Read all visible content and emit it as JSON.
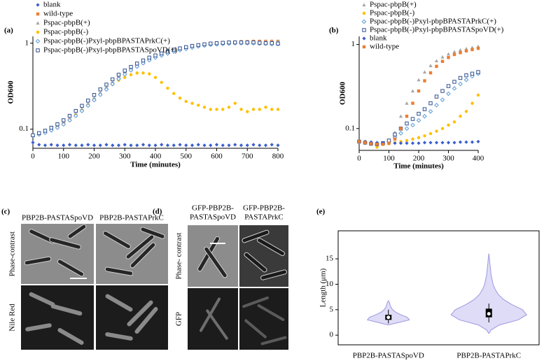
{
  "chart_data": [
    {
      "type": "scatter",
      "label": "(a)",
      "x_label": "Time (minutes)",
      "y_label": "OD600",
      "log_y": true,
      "legend": "upper left",
      "xlim": [
        0,
        800
      ],
      "ylim": [
        0.06,
        1.2
      ],
      "xticks": [
        0,
        100,
        200,
        300,
        400,
        500,
        600,
        700,
        800
      ],
      "yticks": [
        0.1,
        1
      ],
      "x": [
        0,
        20,
        40,
        60,
        80,
        100,
        120,
        140,
        160,
        180,
        200,
        220,
        240,
        260,
        280,
        300,
        320,
        340,
        360,
        380,
        400,
        420,
        440,
        460,
        480,
        500,
        520,
        540,
        560,
        580,
        600,
        620,
        640,
        660,
        680,
        700,
        720,
        740,
        760,
        780,
        800
      ],
      "series": [
        {
          "name": "blank",
          "color": "#3a5fcd",
          "marker": "diamond",
          "values": [
            0.07,
            0.066,
            0.065,
            0.066,
            0.065,
            0.065,
            0.066,
            0.065,
            0.065,
            0.066,
            0.065,
            0.065,
            0.066,
            0.065,
            0.065,
            0.066,
            0.065,
            0.065,
            0.066,
            0.065,
            0.065,
            0.066,
            0.065,
            0.065,
            0.066,
            0.065,
            0.065,
            0.066,
            0.065,
            0.065,
            0.066,
            0.065,
            0.065,
            0.066,
            0.065,
            0.065,
            0.066,
            0.065,
            0.065,
            0.066,
            0.065
          ]
        },
        {
          "name": "wild-type",
          "color": "#ed7d31",
          "marker": "square",
          "values": [
            0.085,
            0.088,
            0.092,
            0.098,
            0.105,
            0.115,
            0.128,
            0.145,
            0.165,
            0.19,
            0.22,
            0.255,
            0.295,
            0.34,
            0.39,
            0.44,
            0.49,
            0.54,
            0.59,
            0.64,
            0.69,
            0.73,
            0.77,
            0.81,
            0.85,
            0.88,
            0.91,
            0.94,
            0.96,
            0.98,
            1.0,
            1.01,
            1.02,
            1.03,
            1.04,
            1.04,
            1.05,
            1.05,
            1.05,
            1.05,
            1.05
          ]
        },
        {
          "name": "Pspac-pbpB(+)",
          "color": "#a6a6a6",
          "marker": "triangle",
          "values": [
            0.086,
            0.089,
            0.093,
            0.099,
            0.107,
            0.118,
            0.132,
            0.15,
            0.172,
            0.198,
            0.23,
            0.265,
            0.305,
            0.35,
            0.4,
            0.45,
            0.5,
            0.55,
            0.6,
            0.65,
            0.7,
            0.74,
            0.78,
            0.82,
            0.86,
            0.89,
            0.92,
            0.95,
            0.97,
            0.99,
            1.01,
            1.02,
            1.03,
            1.04,
            1.05,
            1.05,
            1.06,
            1.06,
            1.06,
            1.06,
            1.06
          ]
        },
        {
          "name": "Pspac-pbpB(-)",
          "color": "#ffc000",
          "marker": "circle",
          "values": [
            0.085,
            0.088,
            0.092,
            0.098,
            0.105,
            0.115,
            0.128,
            0.145,
            0.165,
            0.19,
            0.22,
            0.25,
            0.29,
            0.33,
            0.37,
            0.4,
            0.43,
            0.45,
            0.45,
            0.44,
            0.4,
            0.35,
            0.3,
            0.26,
            0.23,
            0.21,
            0.2,
            0.19,
            0.18,
            0.17,
            0.17,
            0.17,
            0.18,
            0.2,
            0.17,
            0.16,
            0.17,
            0.17,
            0.18,
            0.17,
            0.17
          ]
        },
        {
          "name": "Pspac-pbpB(-)Pxyl-pbpBPASTAPrkC(+)",
          "color": "#5b9bd5",
          "marker": "open-diamond",
          "values": [
            0.084,
            0.087,
            0.091,
            0.097,
            0.104,
            0.114,
            0.127,
            0.143,
            0.163,
            0.188,
            0.218,
            0.252,
            0.29,
            0.335,
            0.385,
            0.435,
            0.485,
            0.535,
            0.585,
            0.635,
            0.68,
            0.72,
            0.76,
            0.8,
            0.83,
            0.86,
            0.89,
            0.92,
            0.94,
            0.96,
            0.97,
            0.98,
            0.99,
            1.0,
            1.0,
            1.0,
            1.0,
            0.99,
            0.99,
            0.98,
            0.98
          ]
        },
        {
          "name": "Pspac-pbpB(-)Pxyl-pbpBPASTASpoVD(+)",
          "color": "#2f4f8f",
          "marker": "open-square",
          "values": [
            0.085,
            0.09,
            0.096,
            0.104,
            0.114,
            0.127,
            0.143,
            0.163,
            0.187,
            0.215,
            0.25,
            0.29,
            0.33,
            0.38,
            0.43,
            0.48,
            0.53,
            0.58,
            0.63,
            0.68,
            0.72,
            0.76,
            0.8,
            0.84,
            0.87,
            0.9,
            0.93,
            0.95,
            0.97,
            0.99,
            1.0,
            1.01,
            1.02,
            1.02,
            1.02,
            1.02,
            1.02,
            1.01,
            1.0,
            1.0,
            0.99
          ]
        }
      ]
    },
    {
      "type": "scatter",
      "label": "(b)",
      "x_label": "Time (minutes)",
      "y_label": "OD600",
      "log_y": true,
      "legend": "upper left",
      "xlim": [
        0,
        400
      ],
      "ylim": [
        0.055,
        1.25
      ],
      "xticks": [
        0,
        100,
        200,
        300,
        400
      ],
      "yticks": [
        0.1,
        1
      ],
      "x": [
        0,
        20,
        40,
        60,
        80,
        100,
        120,
        140,
        160,
        180,
        200,
        220,
        240,
        260,
        280,
        300,
        320,
        340,
        360,
        380,
        400
      ],
      "series": [
        {
          "name": "Pspac-pbpB(+)",
          "color": "#a6a6a6",
          "marker": "triangle",
          "values": [
            0.07,
            0.068,
            0.066,
            0.065,
            0.066,
            0.07,
            0.09,
            0.14,
            0.2,
            0.28,
            0.38,
            0.47,
            0.56,
            0.64,
            0.71,
            0.77,
            0.82,
            0.86,
            0.89,
            0.92,
            0.95
          ]
        },
        {
          "name": "Pspac-pbpB(-)",
          "color": "#ffc000",
          "marker": "circle",
          "values": [
            0.07,
            0.07,
            0.068,
            0.06,
            0.065,
            0.066,
            0.068,
            0.07,
            0.072,
            0.075,
            0.078,
            0.082,
            0.087,
            0.093,
            0.1,
            0.11,
            0.12,
            0.14,
            0.16,
            0.2,
            0.25
          ]
        },
        {
          "name": "Pspac-pbpB(-)Pxyl-pbpBPASTAPrkC(+)",
          "color": "#5b9bd5",
          "marker": "open-diamond",
          "values": [
            0.07,
            0.068,
            0.066,
            0.065,
            0.066,
            0.07,
            0.078,
            0.088,
            0.1,
            0.11,
            0.125,
            0.14,
            0.16,
            0.19,
            0.22,
            0.26,
            0.3,
            0.34,
            0.38,
            0.42,
            0.45
          ]
        },
        {
          "name": "Pspac-pbpB(-)Pxyl-pbpBPASTASpoVD(+)",
          "color": "#2f4f8f",
          "marker": "open-square",
          "values": [
            0.07,
            0.068,
            0.066,
            0.065,
            0.067,
            0.072,
            0.085,
            0.1,
            0.115,
            0.13,
            0.15,
            0.17,
            0.2,
            0.24,
            0.28,
            0.32,
            0.36,
            0.4,
            0.43,
            0.45,
            0.47
          ]
        },
        {
          "name": "blank",
          "color": "#3a5fcd",
          "marker": "diamond",
          "values": [
            0.07,
            0.07,
            0.069,
            0.068,
            0.068,
            0.067,
            0.067,
            0.067,
            0.067,
            0.067,
            0.067,
            0.068,
            0.068,
            0.068,
            0.068,
            0.068,
            0.068,
            0.069,
            0.069,
            0.069,
            0.07
          ]
        },
        {
          "name": "wild-type",
          "color": "#ed7d31",
          "marker": "square",
          "values": [
            0.07,
            0.068,
            0.066,
            0.065,
            0.065,
            0.067,
            0.075,
            0.1,
            0.14,
            0.2,
            0.28,
            0.37,
            0.46,
            0.55,
            0.63,
            0.7,
            0.76,
            0.8,
            0.84,
            0.87,
            0.9
          ]
        }
      ]
    },
    {
      "type": "violin",
      "label": "(e)",
      "y_label": "Length (μm)",
      "ylim": [
        -1.9,
        20.5
      ],
      "yticks": [
        0,
        5,
        10,
        15
      ],
      "color": "#dedcf7",
      "edge_color": "#9c98e0",
      "categories": [
        "PBP2B-PASTASpoVD",
        "PBP2B-PASTAPrkC"
      ],
      "violins": [
        {
          "kde_y": [
            2,
            2.5,
            3,
            3.5,
            4,
            4.5,
            5,
            5.5,
            6,
            6.5,
            6.8
          ],
          "kde": [
            0,
            0.5,
            1,
            0.9,
            0.6,
            0.35,
            0.2,
            0.12,
            0.08,
            0.04,
            0
          ],
          "whisker_low": 2.3,
          "q1": 3.0,
          "median": 3.5,
          "q3": 4.0,
          "whisker_high": 5.0
        },
        {
          "kde_y": [
            0.3,
            1,
            2,
            3,
            4,
            5,
            6,
            7,
            8,
            9,
            10,
            11,
            12,
            13,
            14,
            15,
            16
          ],
          "kde": [
            0,
            0.1,
            0.5,
            1.4,
            1.8,
            1.6,
            1.1,
            0.7,
            0.45,
            0.3,
            0.2,
            0.15,
            0.1,
            0.08,
            0.05,
            0.03,
            0
          ],
          "whisker_low": 2.5,
          "q1": 3.5,
          "median": 4.2,
          "q3": 5.2,
          "whisker_high": 6.2
        }
      ]
    }
  ],
  "images": [
    {
      "label": "(c)",
      "columns": [
        [
          "PBP2B-PASTASpoVD"
        ],
        [
          "PBP2B-PASTAPrkC"
        ]
      ],
      "rows": [
        "Phase-contrast",
        "Nile Red"
      ]
    },
    {
      "label": "(d)",
      "columns": [
        [
          "GFP-PBP2B-",
          "PASTASpoVD"
        ],
        [
          "GFP-PBP2B-",
          "PASTAPrkC"
        ]
      ],
      "rows": [
        "Phase- contrast",
        "GFP"
      ]
    }
  ]
}
